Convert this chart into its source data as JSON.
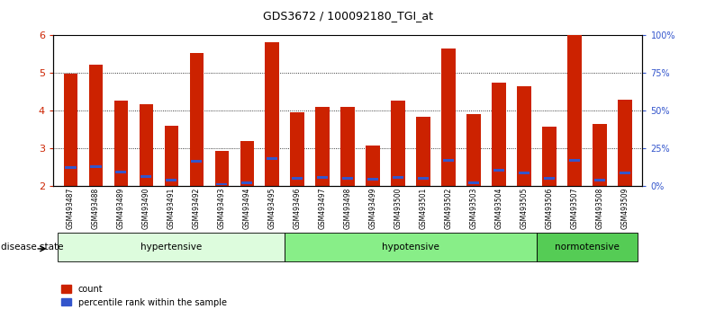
{
  "title": "GDS3672 / 100092180_TGI_at",
  "samples": [
    "GSM493487",
    "GSM493488",
    "GSM493489",
    "GSM493490",
    "GSM493491",
    "GSM493492",
    "GSM493493",
    "GSM493494",
    "GSM493495",
    "GSM493496",
    "GSM493497",
    "GSM493498",
    "GSM493499",
    "GSM493500",
    "GSM493501",
    "GSM493502",
    "GSM493503",
    "GSM493504",
    "GSM493505",
    "GSM493506",
    "GSM493507",
    "GSM493508",
    "GSM493509"
  ],
  "count_values": [
    4.97,
    5.22,
    4.27,
    4.16,
    3.6,
    5.52,
    2.93,
    3.18,
    5.8,
    3.96,
    4.09,
    4.09,
    3.08,
    4.27,
    3.84,
    5.65,
    3.9,
    4.73,
    4.65,
    3.57,
    6.0,
    3.65,
    4.28
  ],
  "percentile_values": [
    2.5,
    2.52,
    2.36,
    2.26,
    2.15,
    2.65,
    2.05,
    2.08,
    2.72,
    2.2,
    2.22,
    2.2,
    2.18,
    2.23,
    2.2,
    2.68,
    2.08,
    2.42,
    2.35,
    2.2,
    2.68,
    2.15,
    2.35
  ],
  "groups": [
    {
      "label": "hypertensive",
      "start": 0,
      "end": 8,
      "color": "#ddfcdd"
    },
    {
      "label": "hypotensive",
      "start": 9,
      "end": 18,
      "color": "#88ee88"
    },
    {
      "label": "normotensive",
      "start": 19,
      "end": 22,
      "color": "#55cc55"
    }
  ],
  "y_min": 2.0,
  "y_max": 6.0,
  "y_ticks": [
    2,
    3,
    4,
    5,
    6
  ],
  "right_y_ticks": [
    0,
    25,
    50,
    75,
    100
  ],
  "right_y_labels": [
    "0%",
    "25%",
    "50%",
    "75%",
    "100%"
  ],
  "bar_color": "#cc2200",
  "blue_color": "#3355cc",
  "bar_width": 0.55,
  "legend_count_label": "count",
  "legend_pct_label": "percentile rank within the sample",
  "disease_state_label": "disease state",
  "left_axis_color": "#cc2200",
  "right_axis_color": "#3355cc",
  "bg_color": "#ffffff"
}
